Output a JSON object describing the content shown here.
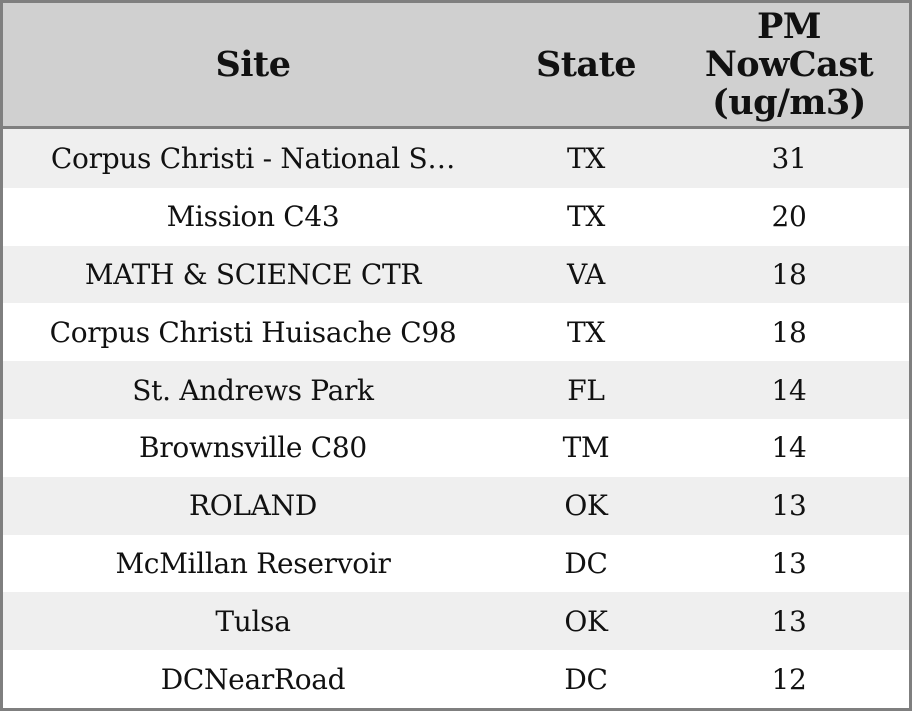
{
  "chart_data": {
    "type": "table",
    "columns": [
      "Site",
      "State",
      "PM NowCast (ug/m3)"
    ],
    "rows": [
      {
        "site": "Corpus Christi - National S…",
        "state": "TX",
        "pm_nowcast": 31
      },
      {
        "site": "Mission C43",
        "state": "TX",
        "pm_nowcast": 20
      },
      {
        "site": "MATH & SCIENCE CTR",
        "state": "VA",
        "pm_nowcast": 18
      },
      {
        "site": "Corpus Christi Huisache C98",
        "state": "TX",
        "pm_nowcast": 18
      },
      {
        "site": "St. Andrews Park",
        "state": "FL",
        "pm_nowcast": 14
      },
      {
        "site": "Brownsville C80",
        "state": "TM",
        "pm_nowcast": 14
      },
      {
        "site": "ROLAND",
        "state": "OK",
        "pm_nowcast": 13
      },
      {
        "site": "McMillan Reservoir",
        "state": "DC",
        "pm_nowcast": 13
      },
      {
        "site": "Tulsa",
        "state": "OK",
        "pm_nowcast": 13
      },
      {
        "site": "DCNearRoad",
        "state": "DC",
        "pm_nowcast": 12
      }
    ]
  },
  "display": {
    "pm_header_multiline": "PM\nNowCast\n(ug/m3)"
  },
  "colors": {
    "border": "#7f7f7f",
    "header_bg": "#d0d0d0",
    "row_alt_bg": "#efefef",
    "row_bg": "#ffffff",
    "text": "#111111"
  }
}
